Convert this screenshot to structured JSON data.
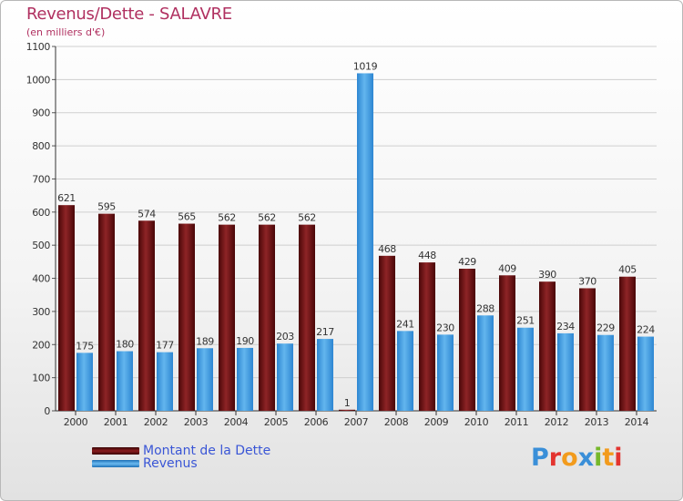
{
  "header": {
    "title": "Revenus/Dette - SALAVRE",
    "subtitle": "(en milliers d'€)"
  },
  "legend": {
    "items": [
      {
        "label": "Montant de la Dette",
        "color": "#6a0e10"
      },
      {
        "label": "Revenus",
        "color": "#3b9ee6"
      }
    ]
  },
  "logo": {
    "letters": [
      {
        "char": "P",
        "color": "#3a8fd8"
      },
      {
        "char": "r",
        "color": "#e3342f"
      },
      {
        "char": "o",
        "color": "#f29b1d"
      },
      {
        "char": "x",
        "color": "#3a8fd8"
      },
      {
        "char": "i",
        "color": "#76b82a"
      },
      {
        "char": "t",
        "color": "#f29b1d"
      },
      {
        "char": "i",
        "color": "#e3342f"
      }
    ]
  },
  "chart_data": {
    "type": "bar",
    "categories": [
      "2000",
      "2001",
      "2002",
      "2003",
      "2004",
      "2005",
      "2006",
      "2007",
      "2008",
      "2009",
      "2010",
      "2011",
      "2012",
      "2013",
      "2014"
    ],
    "series": [
      {
        "name": "Montant de la Dette",
        "color": "#7a1416",
        "values": [
          621,
          595,
          574,
          565,
          562,
          562,
          562,
          1,
          468,
          448,
          429,
          409,
          390,
          370,
          405
        ]
      },
      {
        "name": "Revenus",
        "color": "#4aa6e6",
        "values": [
          175,
          180,
          177,
          189,
          190,
          203,
          217,
          1019,
          241,
          230,
          288,
          251,
          234,
          229,
          224
        ]
      }
    ],
    "ylim": [
      0,
      1100
    ],
    "yticks": [
      0,
      100,
      200,
      300,
      400,
      500,
      600,
      700,
      800,
      900,
      1000,
      1100
    ],
    "grid": true,
    "legend_position": "bottom-left"
  }
}
